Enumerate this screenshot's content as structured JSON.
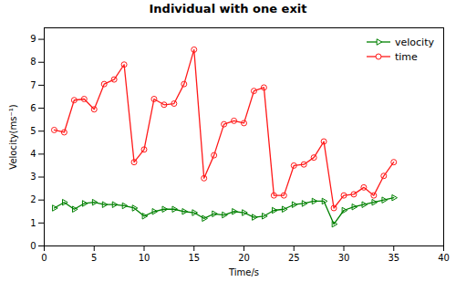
{
  "chart_data": {
    "type": "line",
    "title": "Individual with one exit",
    "xlabel": "Time/s",
    "ylabel": "Velocity(ms⁻¹)",
    "x": [
      1,
      2,
      3,
      4,
      5,
      6,
      7,
      8,
      9,
      10,
      11,
      12,
      13,
      14,
      15,
      16,
      17,
      18,
      19,
      20,
      21,
      22,
      23,
      24,
      25,
      26,
      27,
      28,
      29,
      30,
      31,
      32,
      33,
      34,
      35
    ],
    "series": [
      {
        "name": "velocity",
        "color": "#008000",
        "marker": "triangle-right",
        "values": [
          1.65,
          1.9,
          1.6,
          1.85,
          1.9,
          1.8,
          1.8,
          1.75,
          1.65,
          1.3,
          1.5,
          1.6,
          1.6,
          1.5,
          1.45,
          1.2,
          1.4,
          1.35,
          1.5,
          1.45,
          1.25,
          1.3,
          1.55,
          1.6,
          1.8,
          1.85,
          1.95,
          1.95,
          0.95,
          1.55,
          1.7,
          1.8,
          1.9,
          2.0,
          2.1
        ]
      },
      {
        "name": "time",
        "color": "#ff1a1a",
        "marker": "circle",
        "values": [
          5.05,
          4.95,
          6.35,
          6.4,
          5.95,
          7.05,
          7.25,
          7.9,
          3.65,
          4.2,
          6.4,
          6.15,
          6.2,
          7.05,
          8.55,
          2.95,
          3.95,
          5.3,
          5.45,
          5.35,
          6.75,
          6.9,
          2.2,
          2.2,
          3.5,
          3.55,
          3.85,
          4.55,
          1.65,
          2.2,
          2.25,
          2.55,
          2.2,
          3.05,
          3.65
        ]
      }
    ],
    "xlim": [
      0,
      40
    ],
    "ylim": [
      0,
      9.5
    ],
    "xticks": [
      0,
      5,
      10,
      15,
      20,
      25,
      30,
      35,
      40
    ],
    "yticks": [
      0,
      1,
      2,
      3,
      4,
      5,
      6,
      7,
      8,
      9
    ],
    "legend": "upper right",
    "grid": false
  }
}
